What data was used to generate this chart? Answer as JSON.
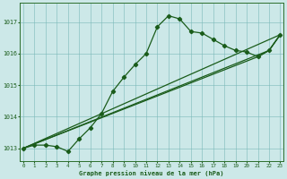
{
  "title": "Graphe pression niveau de la mer (hPa)",
  "background_color": "#cce8e8",
  "line_color": "#1a5c1a",
  "xlim": [
    -0.3,
    23.3
  ],
  "ylim": [
    1012.6,
    1017.6
  ],
  "yticks": [
    1013,
    1014,
    1015,
    1016,
    1017
  ],
  "xticks": [
    0,
    1,
    2,
    3,
    4,
    5,
    6,
    7,
    8,
    9,
    10,
    11,
    12,
    13,
    14,
    15,
    16,
    17,
    18,
    19,
    20,
    21,
    22,
    23
  ],
  "y_main": [
    1013.0,
    1013.1,
    1013.1,
    1013.05,
    1012.9,
    1013.3,
    1013.65,
    1014.1,
    1014.8,
    1015.25,
    1015.65,
    1016.0,
    1016.85,
    1017.2,
    1017.1,
    1016.7,
    1016.65,
    1016.45,
    1016.25,
    1016.1,
    1016.05,
    1015.9,
    1016.1,
    1016.6
  ],
  "line1_x": [
    0,
    23
  ],
  "line1_y": [
    1013.0,
    1016.6
  ],
  "line2_x": [
    0,
    22,
    23
  ],
  "line2_y": [
    1013.0,
    1016.1,
    1016.6
  ],
  "line3_x": [
    0,
    21,
    22,
    23
  ],
  "line3_y": [
    1013.0,
    1015.9,
    1016.1,
    1016.6
  ],
  "figsize": [
    3.2,
    2.0
  ],
  "dpi": 100
}
